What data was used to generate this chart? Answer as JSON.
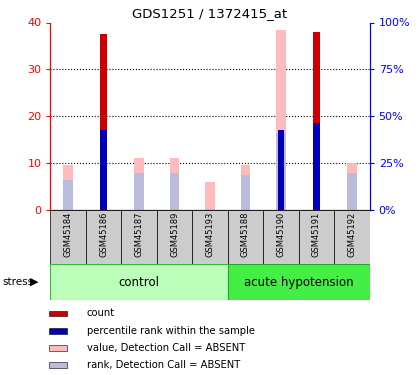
{
  "title": "GDS1251 / 1372415_at",
  "samples": [
    "GSM45184",
    "GSM45186",
    "GSM45187",
    "GSM45189",
    "GSM45193",
    "GSM45188",
    "GSM45190",
    "GSM45191",
    "GSM45192"
  ],
  "count_values": [
    0,
    37.5,
    0,
    0,
    0,
    0,
    0,
    38,
    0
  ],
  "percentile_rank_values": [
    0,
    17,
    0,
    0,
    0,
    0,
    17,
    18.5,
    0
  ],
  "absent_value_values": [
    9.5,
    0,
    11,
    11,
    6,
    9.5,
    38.5,
    0,
    10
  ],
  "absent_rank_values": [
    6.5,
    0,
    8,
    8,
    0,
    7.5,
    16.5,
    0,
    8
  ],
  "ylim": [
    0,
    40
  ],
  "yticks": [
    0,
    10,
    20,
    30,
    40
  ],
  "y2ticks": [
    0,
    25,
    50,
    75,
    100
  ],
  "y2ticklabels": [
    "0%",
    "25%",
    "50%",
    "75%",
    "100%"
  ],
  "color_count": "#cc0000",
  "color_percentile": "#0000bb",
  "color_absent_value": "#ffbbbb",
  "color_absent_rank": "#bbbbdd",
  "bar_bg_color": "#cccccc",
  "plot_bg": "#ffffff",
  "group_control_color": "#bbffbb",
  "group_hypotension_color": "#44ee44",
  "stress_label": "stress",
  "control_label": "control",
  "hypotension_label": "acute hypotension",
  "n_control": 5,
  "n_hypotension": 4,
  "legend_items": [
    {
      "color": "#cc0000",
      "label": "count"
    },
    {
      "color": "#0000bb",
      "label": "percentile rank within the sample"
    },
    {
      "color": "#ffbbbb",
      "label": "value, Detection Call = ABSENT"
    },
    {
      "color": "#bbbbdd",
      "label": "rank, Detection Call = ABSENT"
    }
  ]
}
